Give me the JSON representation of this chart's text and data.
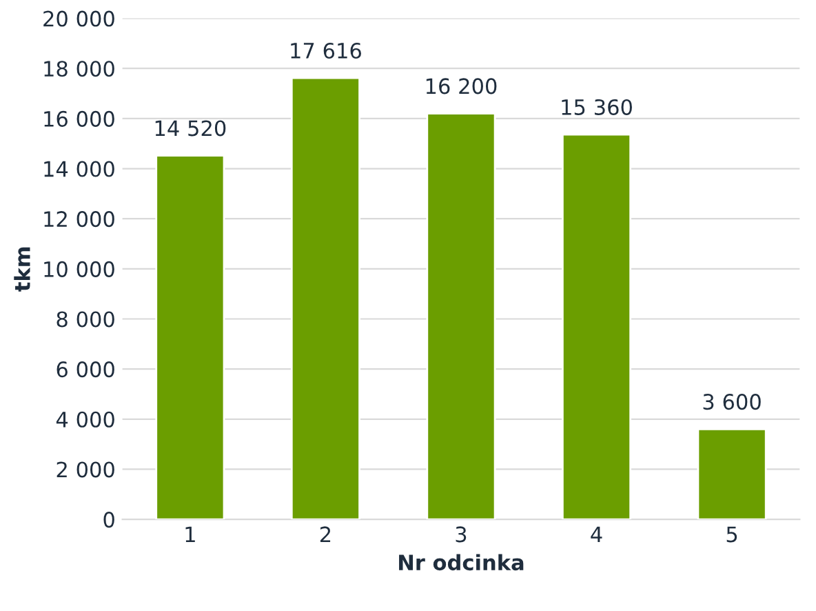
{
  "chart_data": {
    "type": "bar",
    "xlabel": "Nr odcinka",
    "ylabel": "tkm",
    "categories": [
      "1",
      "2",
      "3",
      "4",
      "5"
    ],
    "values": [
      14520,
      17616,
      16200,
      15360,
      3600
    ],
    "value_labels": [
      "14 520",
      "17 616",
      "16 200",
      "15 360",
      "3 600"
    ],
    "color": "#6b9e00",
    "ylim": [
      0,
      20000
    ],
    "yticks": [
      0,
      {
        "value": 2000,
        "label": "2 000"
      },
      {
        "value": 4000,
        "label": "4 000"
      },
      {
        "value": 6000,
        "label": "6 000"
      },
      {
        "value": 8000,
        "label": "8 000"
      },
      {
        "value": 10000,
        "label": "10 000"
      },
      {
        "value": 12000,
        "label": "12 000"
      },
      {
        "value": 14000,
        "label": "14 000"
      },
      {
        "value": 16000,
        "label": "16 000"
      },
      {
        "value": 18000,
        "label": "18 000"
      },
      {
        "value": 20000,
        "label": "20 000"
      }
    ],
    "grid": "y",
    "legend": false
  }
}
